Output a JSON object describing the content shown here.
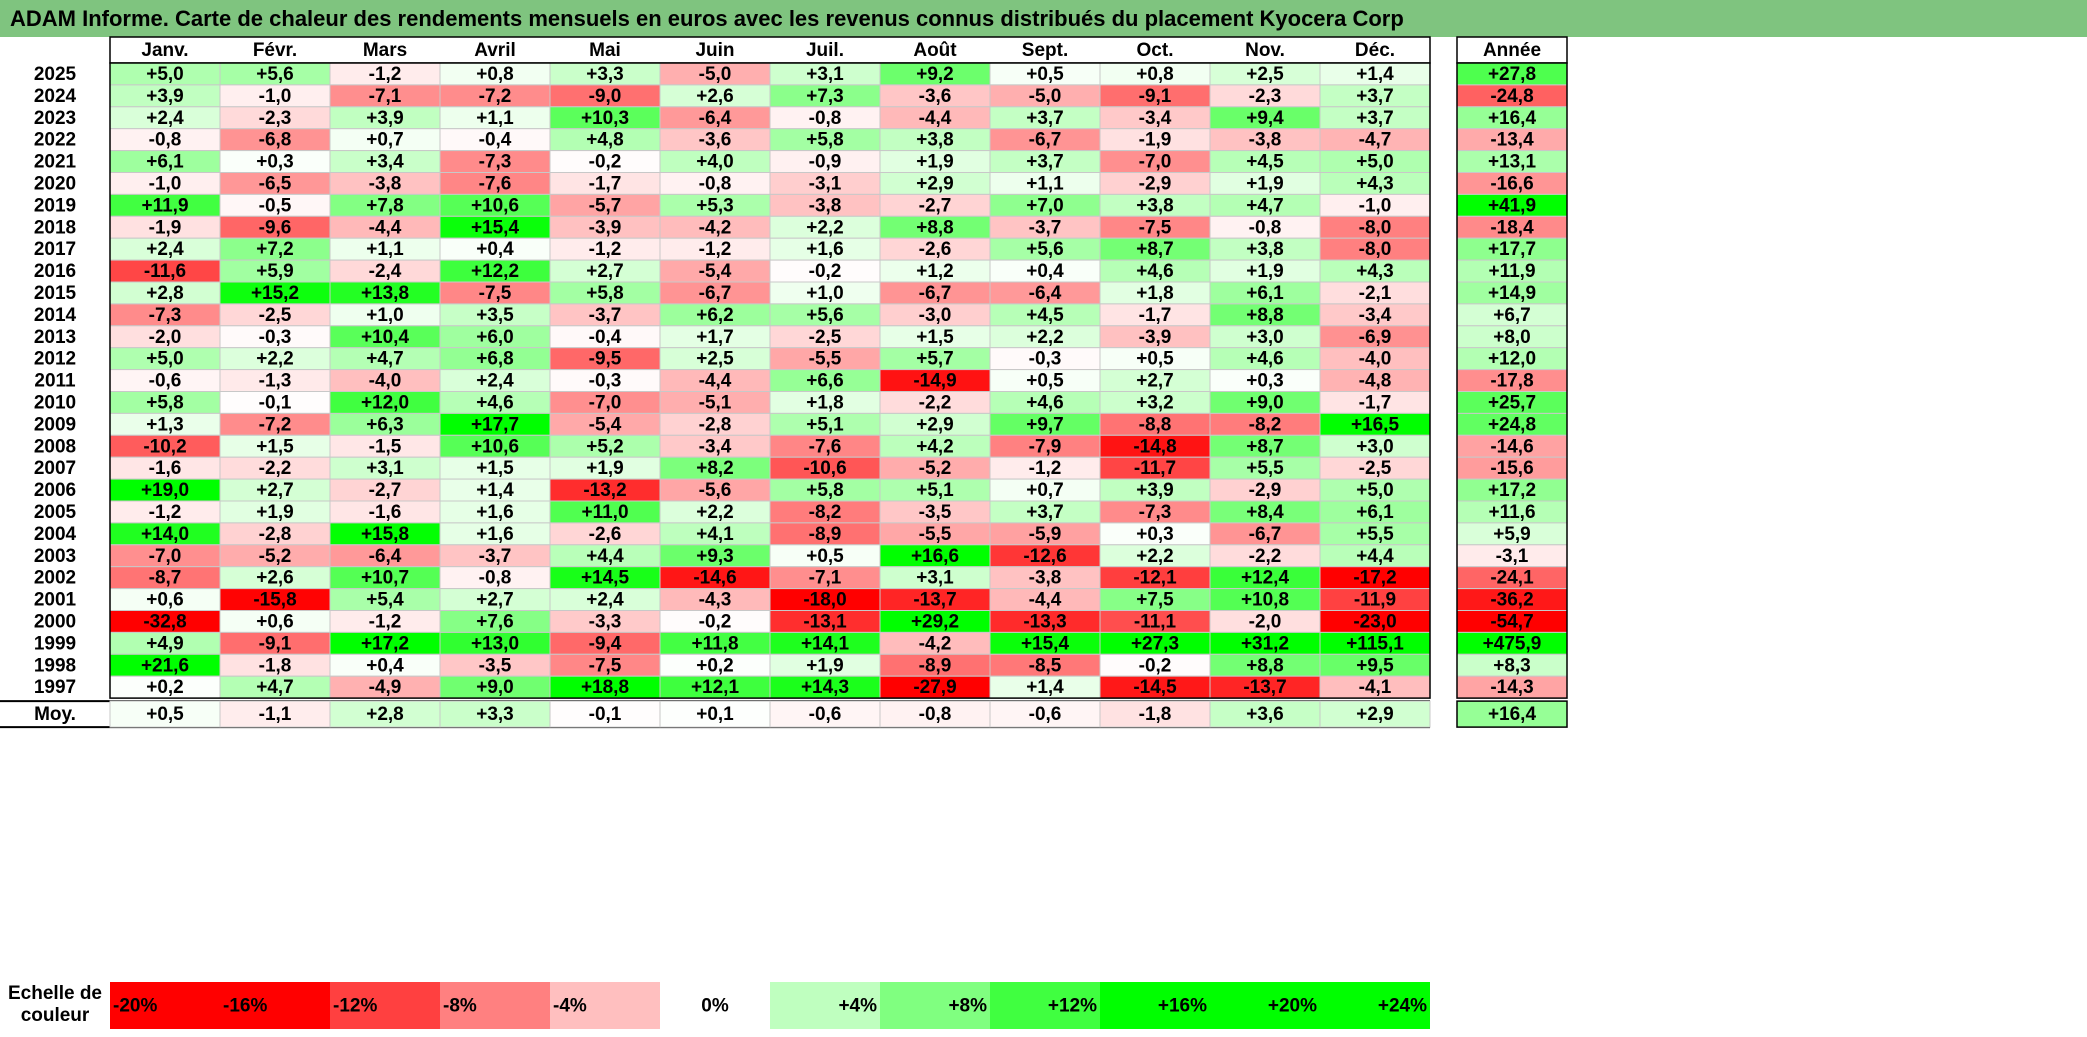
{
  "title": "ADAM Informe. Carte de chaleur des rendements mensuels en euros avec les revenus connus distribués du placement Kyocera Corp",
  "chart_data": {
    "type": "heatmap",
    "months": [
      "Janv.",
      "Févr.",
      "Mars",
      "Avril",
      "Mai",
      "Juin",
      "Juil.",
      "Août",
      "Sept.",
      "Oct.",
      "Nov.",
      "Déc."
    ],
    "annual_label": "Année",
    "average_label": "Moy.",
    "rows": [
      {
        "year": "2025",
        "values": [
          "+5,0",
          "+5,6",
          "-1,2",
          "+0,8",
          "+3,3",
          "-5,0",
          "+3,1",
          "+9,2",
          "+0,5",
          "+0,8",
          "+2,5",
          "+1,4"
        ],
        "annual": "+27,8"
      },
      {
        "year": "2024",
        "values": [
          "+3,9",
          "-1,0",
          "-7,1",
          "-7,2",
          "-9,0",
          "+2,6",
          "+7,3",
          "-3,6",
          "-5,0",
          "-9,1",
          "-2,3",
          "+3,7"
        ],
        "annual": "-24,8"
      },
      {
        "year": "2023",
        "values": [
          "+2,4",
          "-2,3",
          "+3,9",
          "+1,1",
          "+10,3",
          "-6,4",
          "-0,8",
          "-4,4",
          "+3,7",
          "-3,4",
          "+9,4",
          "+3,7"
        ],
        "annual": "+16,4"
      },
      {
        "year": "2022",
        "values": [
          "-0,8",
          "-6,8",
          "+0,7",
          "-0,4",
          "+4,8",
          "-3,6",
          "+5,8",
          "+3,8",
          "-6,7",
          "-1,9",
          "-3,8",
          "-4,7"
        ],
        "annual": "-13,4"
      },
      {
        "year": "2021",
        "values": [
          "+6,1",
          "+0,3",
          "+3,4",
          "-7,3",
          "-0,2",
          "+4,0",
          "-0,9",
          "+1,9",
          "+3,7",
          "-7,0",
          "+4,5",
          "+5,0"
        ],
        "annual": "+13,1"
      },
      {
        "year": "2020",
        "values": [
          "-1,0",
          "-6,5",
          "-3,8",
          "-7,6",
          "-1,7",
          "-0,8",
          "-3,1",
          "+2,9",
          "+1,1",
          "-2,9",
          "+1,9",
          "+4,3"
        ],
        "annual": "-16,6"
      },
      {
        "year": "2019",
        "values": [
          "+11,9",
          "-0,5",
          "+7,8",
          "+10,6",
          "-5,7",
          "+5,3",
          "-3,8",
          "-2,7",
          "+7,0",
          "+3,8",
          "+4,7",
          "-1,0"
        ],
        "annual": "+41,9"
      },
      {
        "year": "2018",
        "values": [
          "-1,9",
          "-9,6",
          "-4,4",
          "+15,4",
          "-3,9",
          "-4,2",
          "+2,2",
          "+8,8",
          "-3,7",
          "-7,5",
          "-0,8",
          "-8,0"
        ],
        "annual": "-18,4"
      },
      {
        "year": "2017",
        "values": [
          "+2,4",
          "+7,2",
          "+1,1",
          "+0,4",
          "-1,2",
          "-1,2",
          "+1,6",
          "-2,6",
          "+5,6",
          "+8,7",
          "+3,8",
          "-8,0"
        ],
        "annual": "+17,7"
      },
      {
        "year": "2016",
        "values": [
          "-11,6",
          "+5,9",
          "-2,4",
          "+12,2",
          "+2,7",
          "-5,4",
          "-0,2",
          "+1,2",
          "+0,4",
          "+4,6",
          "+1,9",
          "+4,3"
        ],
        "annual": "+11,9"
      },
      {
        "year": "2015",
        "values": [
          "+2,8",
          "+15,2",
          "+13,8",
          "-7,5",
          "+5,8",
          "-6,7",
          "+1,0",
          "-6,7",
          "-6,4",
          "+1,8",
          "+6,1",
          "-2,1"
        ],
        "annual": "+14,9"
      },
      {
        "year": "2014",
        "values": [
          "-7,3",
          "-2,5",
          "+1,0",
          "+3,5",
          "-3,7",
          "+6,2",
          "+5,6",
          "-3,0",
          "+4,5",
          "-1,7",
          "+8,8",
          "-3,4"
        ],
        "annual": "+6,7"
      },
      {
        "year": "2013",
        "values": [
          "-2,0",
          "-0,3",
          "+10,4",
          "+6,0",
          "-0,4",
          "+1,7",
          "-2,5",
          "+1,5",
          "+2,2",
          "-3,9",
          "+3,0",
          "-6,9"
        ],
        "annual": "+8,0"
      },
      {
        "year": "2012",
        "values": [
          "+5,0",
          "+2,2",
          "+4,7",
          "+6,8",
          "-9,5",
          "+2,5",
          "-5,5",
          "+5,7",
          "-0,3",
          "+0,5",
          "+4,6",
          "-4,0"
        ],
        "annual": "+12,0"
      },
      {
        "year": "2011",
        "values": [
          "-0,6",
          "-1,3",
          "-4,0",
          "+2,4",
          "-0,3",
          "-4,4",
          "+6,6",
          "-14,9",
          "+0,5",
          "+2,7",
          "+0,3",
          "-4,8"
        ],
        "annual": "-17,8"
      },
      {
        "year": "2010",
        "values": [
          "+5,8",
          "-0,1",
          "+12,0",
          "+4,6",
          "-7,0",
          "-5,1",
          "+1,8",
          "-2,2",
          "+4,6",
          "+3,2",
          "+9,0",
          "-1,7"
        ],
        "annual": "+25,7"
      },
      {
        "year": "2009",
        "values": [
          "+1,3",
          "-7,2",
          "+6,3",
          "+17,7",
          "-5,4",
          "-2,8",
          "+5,1",
          "+2,9",
          "+9,7",
          "-8,8",
          "-8,2",
          "+16,5"
        ],
        "annual": "+24,8"
      },
      {
        "year": "2008",
        "values": [
          "-10,2",
          "+1,5",
          "-1,5",
          "+10,6",
          "+5,2",
          "-3,4",
          "-7,6",
          "+4,2",
          "-7,9",
          "-14,8",
          "+8,7",
          "+3,0"
        ],
        "annual": "-14,6"
      },
      {
        "year": "2007",
        "values": [
          "-1,6",
          "-2,2",
          "+3,1",
          "+1,5",
          "+1,9",
          "+8,2",
          "-10,6",
          "-5,2",
          "-1,2",
          "-11,7",
          "+5,5",
          "-2,5"
        ],
        "annual": "-15,6"
      },
      {
        "year": "2006",
        "values": [
          "+19,0",
          "+2,7",
          "-2,7",
          "+1,4",
          "-13,2",
          "-5,6",
          "+5,8",
          "+5,1",
          "+0,7",
          "+3,9",
          "-2,9",
          "+5,0"
        ],
        "annual": "+17,2"
      },
      {
        "year": "2005",
        "values": [
          "-1,2",
          "+1,9",
          "-1,6",
          "+1,6",
          "+11,0",
          "+2,2",
          "-8,2",
          "-3,5",
          "+3,7",
          "-7,3",
          "+8,4",
          "+6,1"
        ],
        "annual": "+11,6"
      },
      {
        "year": "2004",
        "values": [
          "+14,0",
          "-2,8",
          "+15,8",
          "+1,6",
          "-2,6",
          "+4,1",
          "-8,9",
          "-5,5",
          "-5,9",
          "+0,3",
          "-6,7",
          "+5,5"
        ],
        "annual": "+5,9"
      },
      {
        "year": "2003",
        "values": [
          "-7,0",
          "-5,2",
          "-6,4",
          "-3,7",
          "+4,4",
          "+9,3",
          "+0,5",
          "+16,6",
          "-12,6",
          "+2,2",
          "-2,2",
          "+4,4"
        ],
        "annual": "-3,1"
      },
      {
        "year": "2002",
        "values": [
          "-8,7",
          "+2,6",
          "+10,7",
          "-0,8",
          "+14,5",
          "-14,6",
          "-7,1",
          "+3,1",
          "-3,8",
          "-12,1",
          "+12,4",
          "-17,2"
        ],
        "annual": "-24,1"
      },
      {
        "year": "2001",
        "values": [
          "+0,6",
          "-15,8",
          "+5,4",
          "+2,7",
          "+2,4",
          "-4,3",
          "-18,0",
          "-13,7",
          "-4,4",
          "+7,5",
          "+10,8",
          "-11,9"
        ],
        "annual": "-36,2"
      },
      {
        "year": "2000",
        "values": [
          "-32,8",
          "+0,6",
          "-1,2",
          "+7,6",
          "-3,3",
          "-0,2",
          "-13,1",
          "+29,2",
          "-13,3",
          "-11,1",
          "-2,0",
          "-23,0"
        ],
        "annual": "-54,7"
      },
      {
        "year": "1999",
        "values": [
          "+4,9",
          "-9,1",
          "+17,2",
          "+13,0",
          "-9,4",
          "+11,8",
          "+14,1",
          "-4,2",
          "+15,4",
          "+27,3",
          "+31,2",
          "+115,1"
        ],
        "annual": "+475,9"
      },
      {
        "year": "1998",
        "values": [
          "+21,6",
          "-1,8",
          "+0,4",
          "-3,5",
          "-7,5",
          "+0,2",
          "+1,9",
          "-8,9",
          "-8,5",
          "-0,2",
          "+8,8",
          "+9,5"
        ],
        "annual": "+8,3"
      },
      {
        "year": "1997",
        "values": [
          "+0,2",
          "+4,7",
          "-4,9",
          "+9,0",
          "+18,8",
          "+12,1",
          "+14,3",
          "-27,9",
          "+1,4",
          "-14,5",
          "-13,7",
          "-4,1"
        ],
        "annual": "-14,3"
      }
    ],
    "average": {
      "values": [
        "+0,5",
        "-1,1",
        "+2,8",
        "+3,3",
        "-0,1",
        "+0,1",
        "-0,6",
        "-0,8",
        "-0,6",
        "-1,8",
        "+3,6",
        "+2,9"
      ],
      "annual": "+16,4"
    },
    "scale": {
      "label_line1": "Echelle de",
      "label_line2": "couleur",
      "items": [
        "-20%",
        "-16%",
        "-12%",
        "-8%",
        "-4%",
        "0%",
        "+4%",
        "+8%",
        "+12%",
        "+16%",
        "+20%",
        "+24%"
      ]
    },
    "colors": {
      "neg_max": "#ff0000",
      "pos_max": "#00ff00",
      "zero": "#ffffff",
      "title_bar": "#7fc47f"
    }
  }
}
